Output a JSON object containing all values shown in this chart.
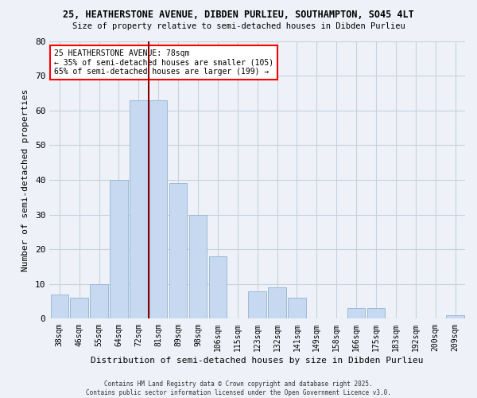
{
  "title1": "25, HEATHERSTONE AVENUE, DIBDEN PURLIEU, SOUTHAMPTON, SO45 4LT",
  "title2": "Size of property relative to semi-detached houses in Dibden Purlieu",
  "xlabel": "Distribution of semi-detached houses by size in Dibden Purlieu",
  "ylabel": "Number of semi-detached properties",
  "categories": [
    "38sqm",
    "46sqm",
    "55sqm",
    "64sqm",
    "72sqm",
    "81sqm",
    "89sqm",
    "98sqm",
    "106sqm",
    "115sqm",
    "123sqm",
    "132sqm",
    "141sqm",
    "149sqm",
    "158sqm",
    "166sqm",
    "175sqm",
    "183sqm",
    "192sqm",
    "200sqm",
    "209sqm"
  ],
  "values": [
    7,
    6,
    10,
    40,
    63,
    63,
    39,
    30,
    18,
    0,
    8,
    9,
    6,
    0,
    0,
    3,
    3,
    0,
    0,
    0,
    1
  ],
  "bar_color": "#c6d9f0",
  "bar_edge_color": "#9bbad4",
  "red_line_index": 5,
  "annotation_title": "25 HEATHERSTONE AVENUE: 78sqm",
  "annotation_line1": "← 35% of semi-detached houses are smaller (105)",
  "annotation_line2": "65% of semi-detached houses are larger (199) →",
  "ylim": [
    0,
    80
  ],
  "yticks": [
    0,
    10,
    20,
    30,
    40,
    50,
    60,
    70,
    80
  ],
  "footer1": "Contains HM Land Registry data © Crown copyright and database right 2025.",
  "footer2": "Contains public sector information licensed under the Open Government Licence v3.0.",
  "bg_outer": "#eef2f8",
  "bg_plot": "#eef2f8",
  "grid_color": "#c8d0dc"
}
